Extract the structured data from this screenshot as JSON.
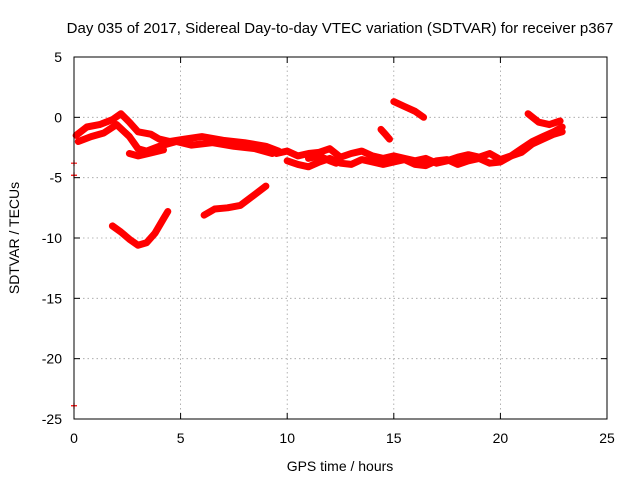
{
  "chart_data": {
    "type": "scatter",
    "title": "Day 035 of 2017, Sidereal Day-to-day VTEC variation (SDTVAR) for receiver p367",
    "xlabel": "GPS time / hours",
    "ylabel": "SDTVAR / TECUs",
    "xlim": [
      0,
      25
    ],
    "ylim": [
      -25,
      5
    ],
    "xticks": [
      0,
      5,
      10,
      15,
      20,
      25
    ],
    "yticks": [
      -25,
      -20,
      -15,
      -10,
      -5,
      0,
      5
    ],
    "grid": true,
    "series_color": "#ff0000",
    "series": [
      {
        "x": [
          0.1,
          0.6,
          1.2,
          1.8,
          2.2,
          2.6,
          3.0,
          3.6,
          4.0,
          4.5,
          5.2,
          6.0,
          7.0,
          8.0,
          9.0,
          9.6
        ],
        "y": [
          -1.5,
          -0.8,
          -0.6,
          -0.2,
          0.3,
          -0.4,
          -1.2,
          -1.4,
          -1.8,
          -2.0,
          -1.8,
          -1.6,
          -1.9,
          -2.1,
          -2.4,
          -2.8
        ]
      },
      {
        "x": [
          0.2,
          0.8,
          1.4,
          2.0,
          2.6,
          3.0,
          3.4,
          4.0,
          4.8,
          5.5,
          6.5,
          7.5,
          8.5,
          9.3
        ],
        "y": [
          -2.0,
          -1.6,
          -1.3,
          -0.6,
          -1.6,
          -2.6,
          -2.8,
          -2.4,
          -2.0,
          -2.3,
          -2.1,
          -2.4,
          -2.6,
          -3.0
        ]
      },
      {
        "x": [
          2.6,
          3.0,
          3.5,
          4.2
        ],
        "y": [
          -3.0,
          -3.2,
          -3.0,
          -2.7
        ]
      },
      {
        "x": [
          9.5,
          10.0,
          10.5,
          11.0,
          11.5,
          12.0,
          12.5,
          13.0,
          13.5,
          14.0,
          14.5,
          15.0,
          15.5,
          16.0,
          16.5,
          17.0,
          17.5,
          18.0,
          18.5,
          19.0,
          19.5,
          20.0,
          20.5,
          21.0,
          21.5,
          22.0,
          22.5,
          22.9
        ],
        "y": [
          -3.0,
          -2.8,
          -3.2,
          -3.0,
          -2.9,
          -2.6,
          -3.3,
          -3.0,
          -2.8,
          -3.2,
          -3.4,
          -3.2,
          -3.4,
          -3.6,
          -3.4,
          -3.8,
          -3.6,
          -3.3,
          -3.1,
          -3.3,
          -3.0,
          -3.5,
          -3.2,
          -2.6,
          -2.0,
          -1.6,
          -1.2,
          -0.8
        ]
      },
      {
        "x": [
          10.0,
          10.5,
          11.0,
          11.5,
          12.0,
          12.5,
          13.0,
          13.5,
          14.0,
          14.5,
          15.0,
          15.5,
          16.0,
          16.5,
          17.0,
          17.5,
          18.0,
          18.5,
          19.0,
          19.5,
          20.0,
          20.5,
          21.0,
          21.5,
          22.0,
          22.5,
          22.9
        ],
        "y": [
          -3.6,
          -3.9,
          -4.1,
          -3.7,
          -3.4,
          -3.8,
          -3.9,
          -3.5,
          -3.7,
          -3.9,
          -3.7,
          -3.5,
          -3.9,
          -4.0,
          -3.6,
          -3.5,
          -3.9,
          -3.6,
          -3.4,
          -3.8,
          -3.7,
          -3.2,
          -2.9,
          -2.2,
          -1.8,
          -1.4,
          -1.2
        ]
      },
      {
        "x": [
          11.0,
          11.5,
          12.0,
          12.3
        ],
        "y": [
          -3.4,
          -3.2,
          -3.6,
          -3.8
        ]
      },
      {
        "x": [
          14.4,
          14.6,
          14.8
        ],
        "y": [
          -1.0,
          -1.4,
          -1.8
        ]
      },
      {
        "x": [
          15.0,
          15.5,
          16.0,
          16.4
        ],
        "y": [
          1.3,
          0.9,
          0.5,
          0.0
        ]
      },
      {
        "x": [
          21.3,
          21.8,
          22.3,
          22.8
        ],
        "y": [
          0.3,
          -0.4,
          -0.6,
          -0.3
        ]
      },
      {
        "x": [
          1.8,
          2.2,
          2.6,
          3.0,
          3.4,
          3.8,
          4.2,
          4.4
        ],
        "y": [
          -9.0,
          -9.5,
          -10.1,
          -10.6,
          -10.4,
          -9.6,
          -8.4,
          -7.8
        ]
      },
      {
        "x": [
          6.1,
          6.6,
          7.2,
          7.8,
          8.4,
          9.0
        ],
        "y": [
          -8.1,
          -7.6,
          -7.5,
          -7.3,
          -6.5,
          -5.7
        ]
      },
      {
        "x": [
          0.0,
          0.0,
          0.0
        ],
        "y": [
          -3.8,
          -4.8,
          -23.9
        ]
      }
    ]
  }
}
